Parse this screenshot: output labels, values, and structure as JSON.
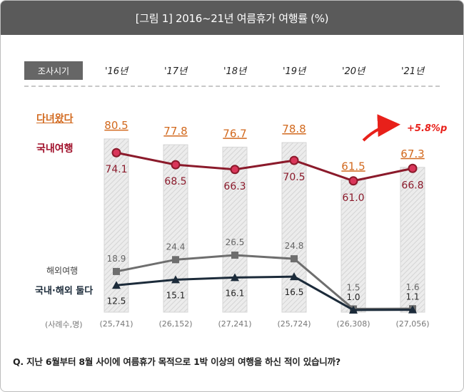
{
  "header": {
    "title": "[그림 1] 2016~21년 여름휴가 여행률 (%)"
  },
  "survey_label": "조사시기",
  "years": [
    "'16년",
    "'17년",
    "'18년",
    "'19년",
    "'20년",
    "'21년"
  ],
  "series_labels": {
    "total": "다녀왔다",
    "domestic": "국내여행",
    "overseas": "해외여행",
    "both": "국내·해외 둘다"
  },
  "sample_label": "(사례수,명)",
  "samples": [
    "(25,741)",
    "(26,152)",
    "(27,241)",
    "(25,724)",
    "(26,308)",
    "(27,056)"
  ],
  "growth_annotation": "+5.8%p",
  "question": "Q. 지난 6월부터 8월 사이에 여름휴가 목적으로 1박 이상의 여행을 하신 적이 있습니까?",
  "colors": {
    "total": "#d2691e",
    "domestic": "#8b1a2b",
    "domestic_marker": "#d9365a",
    "overseas": "#6e6e6e",
    "both": "#1c2b3a",
    "bar": "#e3e3e3",
    "arrow": "#e8201a"
  },
  "chart_data": {
    "type": "bar",
    "categories": [
      "'16년",
      "'17년",
      "'18년",
      "'19년",
      "'20년",
      "'21년"
    ],
    "ylim": [
      0,
      100
    ],
    "series": [
      {
        "name": "다녀왔다",
        "type": "bar",
        "values": [
          80.5,
          77.8,
          76.7,
          78.8,
          61.5,
          67.3
        ],
        "labels": [
          "80.5",
          "77.8",
          "76.7",
          "78.8",
          "61.5",
          "67.3"
        ]
      },
      {
        "name": "국내여행",
        "type": "line",
        "values": [
          74.1,
          68.5,
          66.3,
          70.5,
          61.0,
          66.8
        ],
        "labels": [
          "74.1",
          "68.5",
          "66.3",
          "70.5",
          "61.0",
          "66.8"
        ]
      },
      {
        "name": "해외여행",
        "type": "line",
        "values": [
          18.9,
          24.4,
          26.5,
          24.8,
          1.5,
          1.6
        ],
        "labels": [
          "18.9",
          "24.4",
          "26.5",
          "24.8",
          "1.5",
          "1.6"
        ]
      },
      {
        "name": "국내·해외 둘다",
        "type": "line",
        "values": [
          12.5,
          15.1,
          16.1,
          16.5,
          1.0,
          1.1
        ],
        "labels": [
          "12.5",
          "15.1",
          "16.1",
          "16.5",
          "1.0",
          "1.1"
        ]
      }
    ]
  }
}
